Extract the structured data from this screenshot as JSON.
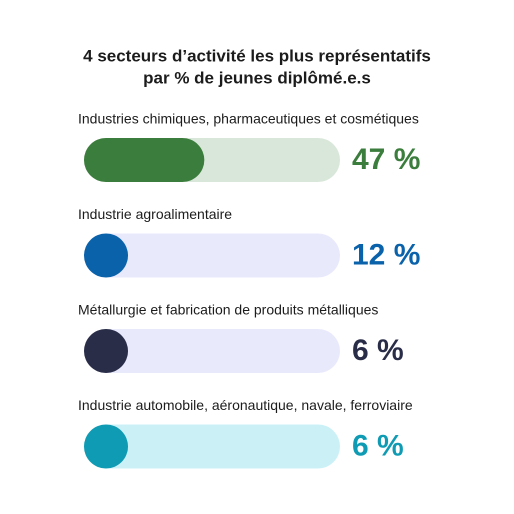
{
  "chart_data": {
    "type": "bar",
    "title": [
      "4 secteurs d’activité les plus représentatifs",
      "par % de jeunes diplômé.e.s"
    ],
    "categories": [
      "Industries chimiques, pharmaceutiques et cosmétiques",
      "Industrie agroalimentaire",
      "Métallurgie et fabrication de produits métalliques",
      "Industrie automobile, aéronautique, navale, ferroviaire"
    ],
    "values": [
      47,
      12,
      6,
      6
    ],
    "value_labels": [
      "47 %",
      "12 %",
      "6 %",
      "6 %"
    ],
    "colors": [
      "#3b7d3c",
      "#0a62ab",
      "#2a2d48",
      "#0f9bb3"
    ],
    "track_colors": [
      "#d9e7da",
      "#e9e9fc",
      "#e9e9fc",
      "#cbf1f7"
    ],
    "label_colors": [
      "#3b7d3c",
      "#0a62ab",
      "#2a2d48",
      "#0f9bb3"
    ],
    "xlim": [
      0,
      100
    ]
  }
}
